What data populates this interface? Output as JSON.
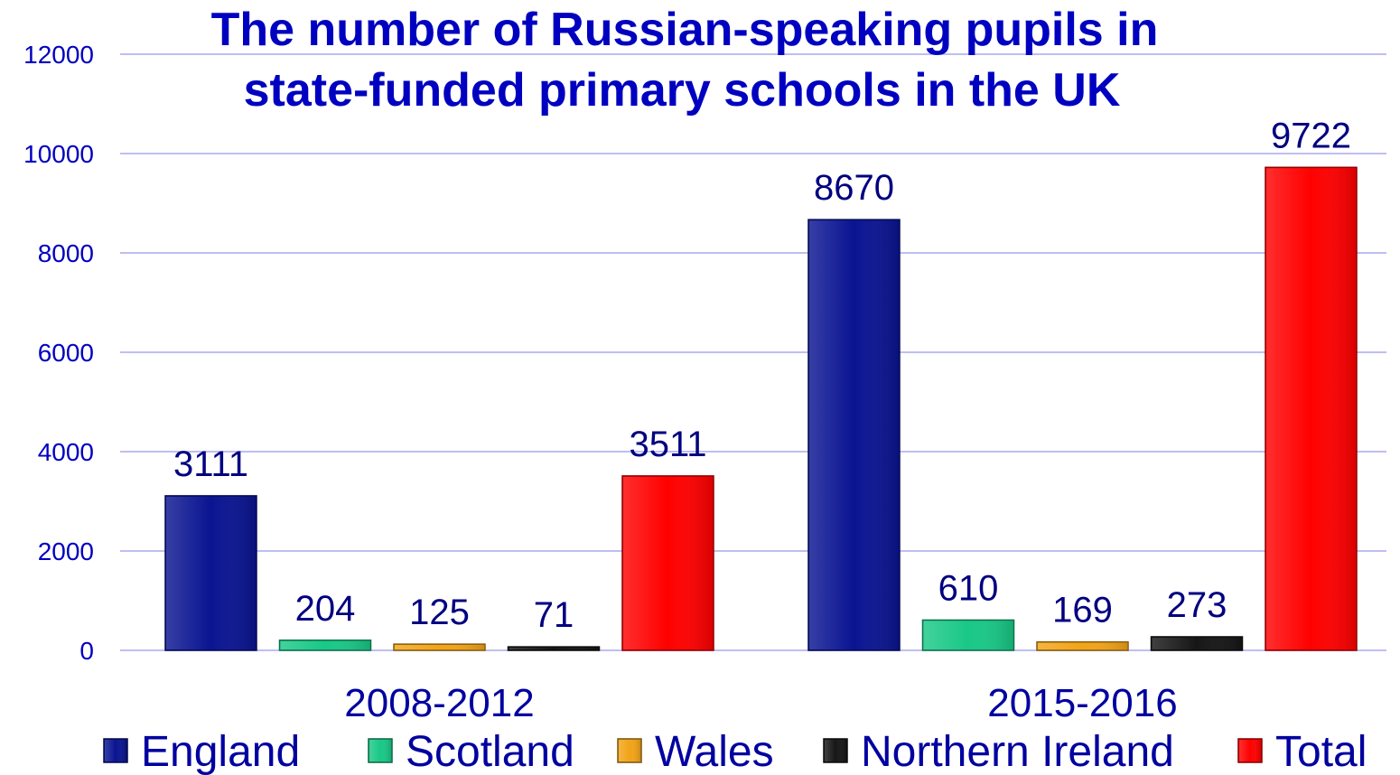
{
  "chart_data": {
    "type": "bar",
    "title": "The number of Russian-speaking pupils in state-funded primary schools in the UK",
    "title_lines": [
      "The number of Russian-speaking pupils in",
      "state-funded primary schools in the UK"
    ],
    "categories": [
      "2008-2012",
      "2015-2016"
    ],
    "series": [
      {
        "name": "England",
        "values": [
          3111,
          8670
        ],
        "color": "#0a1491"
      },
      {
        "name": "Scotland",
        "values": [
          204,
          610
        ],
        "color": "#19c886"
      },
      {
        "name": "Wales",
        "values": [
          125,
          169
        ],
        "color": "#f2a418"
      },
      {
        "name": "Northern Ireland",
        "values": [
          71,
          273
        ],
        "color": "#161616"
      },
      {
        "name": "Total",
        "values": [
          3511,
          9722
        ],
        "color": "#ff0000"
      }
    ],
    "ylim": [
      0,
      12000
    ],
    "yticks": [
      0,
      2000,
      4000,
      6000,
      8000,
      10000,
      12000
    ],
    "grid": true,
    "data_labels": true,
    "legend_position": "bottom"
  }
}
